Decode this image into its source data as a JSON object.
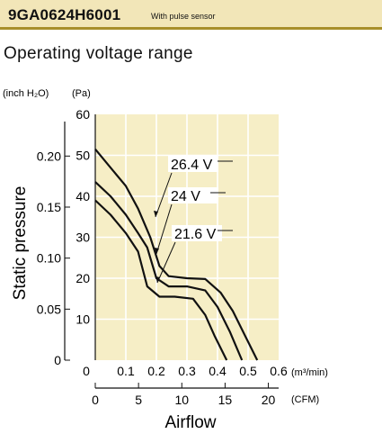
{
  "header": {
    "model": "9GA0624H6001",
    "note": "With pulse sensor"
  },
  "subtitle": "Operating voltage range",
  "chart_data": {
    "type": "line",
    "title": "Operating voltage range",
    "y_units": {
      "inch": "(inch H₂O)",
      "pa": "(Pa)"
    },
    "y_inch_ticks": [
      "0.20",
      "0.15",
      "0.10",
      "0.05"
    ],
    "y_inch_values": [
      0.2,
      0.15,
      0.1,
      0.05
    ],
    "y_pa_ticks": [
      "60",
      "50",
      "40",
      "30",
      "20",
      "10"
    ],
    "y_pa_values": [
      60,
      50,
      40,
      30,
      20,
      10
    ],
    "y_zero": "0",
    "ylabel": "Static pressure",
    "x_m3_ticks": [
      "0",
      "0.1",
      "0.2",
      "0.3",
      "0.4",
      "0.5",
      "0.6"
    ],
    "x_m3_values": [
      0,
      0.1,
      0.2,
      0.3,
      0.4,
      0.5,
      0.6
    ],
    "x_m3_unit": "(m³/min)",
    "x_cfm_ticks": [
      "0",
      "5",
      "10",
      "15",
      "20"
    ],
    "x_cfm_values": [
      0,
      5,
      10,
      15,
      20
    ],
    "x_cfm_unit": "(CFM)",
    "xlabel": "Airflow",
    "xlim": [
      0,
      0.6
    ],
    "ylim": [
      0,
      60
    ],
    "grid": true,
    "series": [
      {
        "name": "26.4 V",
        "points": [
          [
            0,
            51.5
          ],
          [
            0.05,
            47
          ],
          [
            0.1,
            42.5
          ],
          [
            0.14,
            37
          ],
          [
            0.18,
            30
          ],
          [
            0.21,
            23
          ],
          [
            0.24,
            20.5
          ],
          [
            0.3,
            20
          ],
          [
            0.36,
            19.8
          ],
          [
            0.41,
            16.5
          ],
          [
            0.45,
            12
          ],
          [
            0.49,
            6
          ],
          [
            0.53,
            0
          ]
        ]
      },
      {
        "name": "24 V",
        "points": [
          [
            0,
            43.5
          ],
          [
            0.05,
            40
          ],
          [
            0.1,
            35.5
          ],
          [
            0.14,
            31
          ],
          [
            0.17,
            27.5
          ],
          [
            0.2,
            20
          ],
          [
            0.24,
            18
          ],
          [
            0.3,
            18
          ],
          [
            0.36,
            17
          ],
          [
            0.4,
            13
          ],
          [
            0.44,
            7
          ],
          [
            0.48,
            0
          ]
        ]
      },
      {
        "name": "21.6 V",
        "points": [
          [
            0,
            39
          ],
          [
            0.05,
            35.5
          ],
          [
            0.1,
            31
          ],
          [
            0.14,
            26.5
          ],
          [
            0.17,
            18
          ],
          [
            0.21,
            15.5
          ],
          [
            0.26,
            15.5
          ],
          [
            0.32,
            15
          ],
          [
            0.36,
            11
          ],
          [
            0.39,
            6
          ],
          [
            0.43,
            0
          ]
        ]
      }
    ]
  }
}
